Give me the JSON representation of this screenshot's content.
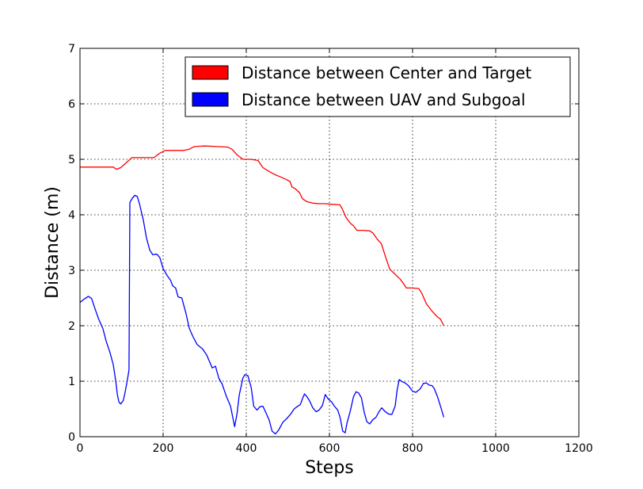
{
  "chart_data": {
    "type": "line",
    "xlabel": "Steps",
    "ylabel": "Distance (m)",
    "xlim": [
      0,
      1200
    ],
    "ylim": [
      0,
      7
    ],
    "xticks": [
      "0",
      "200",
      "400",
      "600",
      "800",
      "1000",
      "1200"
    ],
    "yticks": [
      "0",
      "1",
      "2",
      "3",
      "4",
      "5",
      "6",
      "7"
    ],
    "grid": true,
    "legend_position": "top-right",
    "series": [
      {
        "name": "Distance between Center and Target",
        "color": "#ff0000",
        "points": [
          [
            0,
            4.86
          ],
          [
            80,
            4.86
          ],
          [
            88,
            4.82
          ],
          [
            98,
            4.85
          ],
          [
            110,
            4.93
          ],
          [
            125,
            5.03
          ],
          [
            140,
            5.03
          ],
          [
            160,
            5.03
          ],
          [
            178,
            5.03
          ],
          [
            192,
            5.11
          ],
          [
            205,
            5.16
          ],
          [
            225,
            5.16
          ],
          [
            250,
            5.16
          ],
          [
            262,
            5.18
          ],
          [
            275,
            5.23
          ],
          [
            300,
            5.24
          ],
          [
            330,
            5.23
          ],
          [
            355,
            5.22
          ],
          [
            366,
            5.18
          ],
          [
            378,
            5.08
          ],
          [
            392,
            5.0
          ],
          [
            410,
            5.0
          ],
          [
            428,
            4.98
          ],
          [
            440,
            4.85
          ],
          [
            455,
            4.78
          ],
          [
            470,
            4.72
          ],
          [
            480,
            4.69
          ],
          [
            495,
            4.64
          ],
          [
            505,
            4.6
          ],
          [
            510,
            4.5
          ],
          [
            518,
            4.47
          ],
          [
            528,
            4.4
          ],
          [
            535,
            4.29
          ],
          [
            545,
            4.24
          ],
          [
            560,
            4.21
          ],
          [
            575,
            4.2
          ],
          [
            590,
            4.2
          ],
          [
            603,
            4.19
          ],
          [
            625,
            4.18
          ],
          [
            630,
            4.12
          ],
          [
            640,
            3.95
          ],
          [
            650,
            3.85
          ],
          [
            658,
            3.8
          ],
          [
            666,
            3.72
          ],
          [
            680,
            3.72
          ],
          [
            697,
            3.71
          ],
          [
            705,
            3.67
          ],
          [
            715,
            3.56
          ],
          [
            725,
            3.48
          ],
          [
            735,
            3.24
          ],
          [
            745,
            3.02
          ],
          [
            755,
            2.95
          ],
          [
            770,
            2.84
          ],
          [
            780,
            2.74
          ],
          [
            785,
            2.68
          ],
          [
            800,
            2.68
          ],
          [
            815,
            2.67
          ],
          [
            822,
            2.59
          ],
          [
            833,
            2.4
          ],
          [
            845,
            2.28
          ],
          [
            858,
            2.17
          ],
          [
            867,
            2.12
          ],
          [
            875,
            2.0
          ]
        ]
      },
      {
        "name": "Distance between UAV and Subgoal",
        "color": "#0000ff",
        "points": [
          [
            0,
            2.42
          ],
          [
            10,
            2.48
          ],
          [
            20,
            2.53
          ],
          [
            28,
            2.49
          ],
          [
            36,
            2.31
          ],
          [
            45,
            2.12
          ],
          [
            55,
            1.95
          ],
          [
            63,
            1.72
          ],
          [
            72,
            1.52
          ],
          [
            80,
            1.3
          ],
          [
            86,
            1.0
          ],
          [
            90,
            0.75
          ],
          [
            94,
            0.62
          ],
          [
            98,
            0.59
          ],
          [
            104,
            0.65
          ],
          [
            108,
            0.78
          ],
          [
            114,
            1.02
          ],
          [
            118,
            1.2
          ],
          [
            120,
            4.22
          ],
          [
            126,
            4.3
          ],
          [
            132,
            4.35
          ],
          [
            138,
            4.33
          ],
          [
            143,
            4.2
          ],
          [
            152,
            3.92
          ],
          [
            160,
            3.58
          ],
          [
            168,
            3.36
          ],
          [
            175,
            3.28
          ],
          [
            185,
            3.29
          ],
          [
            192,
            3.23
          ],
          [
            200,
            3.03
          ],
          [
            210,
            2.9
          ],
          [
            218,
            2.82
          ],
          [
            223,
            2.72
          ],
          [
            230,
            2.68
          ],
          [
            236,
            2.52
          ],
          [
            245,
            2.5
          ],
          [
            255,
            2.22
          ],
          [
            263,
            1.95
          ],
          [
            272,
            1.8
          ],
          [
            282,
            1.66
          ],
          [
            295,
            1.58
          ],
          [
            305,
            1.47
          ],
          [
            318,
            1.24
          ],
          [
            326,
            1.27
          ],
          [
            334,
            1.05
          ],
          [
            342,
            0.95
          ],
          [
            352,
            0.73
          ],
          [
            362,
            0.55
          ],
          [
            372,
            0.18
          ],
          [
            378,
            0.42
          ],
          [
            383,
            0.75
          ],
          [
            392,
            1.06
          ],
          [
            397,
            1.12
          ],
          [
            404,
            1.1
          ],
          [
            412,
            0.88
          ],
          [
            418,
            0.55
          ],
          [
            426,
            0.48
          ],
          [
            433,
            0.54
          ],
          [
            440,
            0.55
          ],
          [
            448,
            0.42
          ],
          [
            455,
            0.3
          ],
          [
            462,
            0.1
          ],
          [
            470,
            0.05
          ],
          [
            478,
            0.12
          ],
          [
            488,
            0.26
          ],
          [
            498,
            0.33
          ],
          [
            508,
            0.42
          ],
          [
            515,
            0.5
          ],
          [
            522,
            0.54
          ],
          [
            530,
            0.58
          ],
          [
            536,
            0.7
          ],
          [
            540,
            0.77
          ],
          [
            546,
            0.72
          ],
          [
            552,
            0.65
          ],
          [
            560,
            0.52
          ],
          [
            568,
            0.45
          ],
          [
            575,
            0.48
          ],
          [
            583,
            0.56
          ],
          [
            590,
            0.76
          ],
          [
            597,
            0.68
          ],
          [
            605,
            0.63
          ],
          [
            612,
            0.55
          ],
          [
            620,
            0.48
          ],
          [
            626,
            0.34
          ],
          [
            632,
            0.1
          ],
          [
            638,
            0.07
          ],
          [
            642,
            0.24
          ],
          [
            650,
            0.46
          ],
          [
            658,
            0.72
          ],
          [
            664,
            0.81
          ],
          [
            670,
            0.79
          ],
          [
            677,
            0.7
          ],
          [
            684,
            0.43
          ],
          [
            690,
            0.27
          ],
          [
            697,
            0.23
          ],
          [
            705,
            0.31
          ],
          [
            712,
            0.35
          ],
          [
            720,
            0.46
          ],
          [
            726,
            0.52
          ],
          [
            733,
            0.46
          ],
          [
            742,
            0.41
          ],
          [
            750,
            0.4
          ],
          [
            758,
            0.55
          ],
          [
            763,
            0.85
          ],
          [
            768,
            1.03
          ],
          [
            775,
            0.99
          ],
          [
            782,
            0.97
          ],
          [
            790,
            0.92
          ],
          [
            800,
            0.82
          ],
          [
            808,
            0.8
          ],
          [
            818,
            0.86
          ],
          [
            826,
            0.96
          ],
          [
            833,
            0.97
          ],
          [
            840,
            0.93
          ],
          [
            847,
            0.92
          ],
          [
            852,
            0.87
          ],
          [
            860,
            0.72
          ],
          [
            868,
            0.53
          ],
          [
            875,
            0.35
          ]
        ]
      }
    ]
  }
}
